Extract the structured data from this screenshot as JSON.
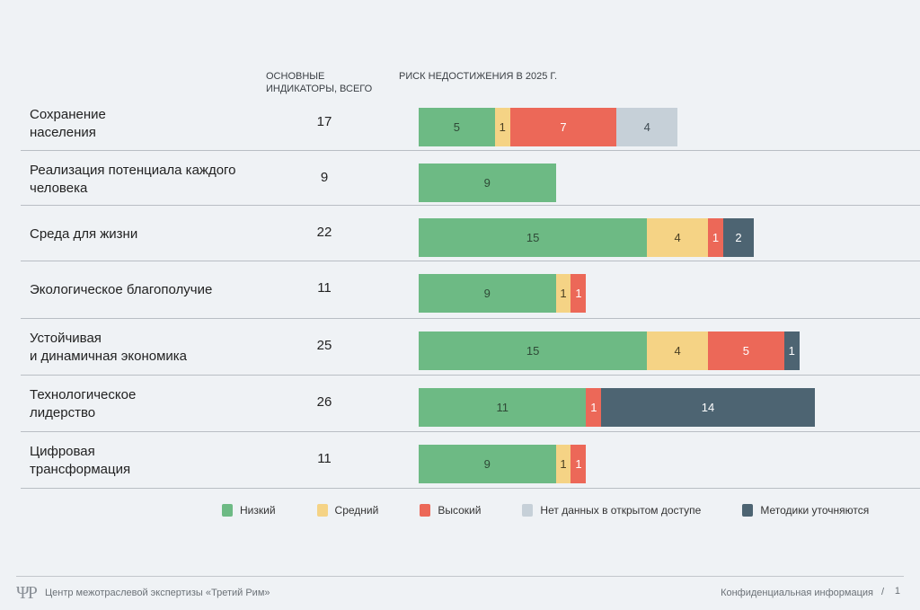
{
  "headers": {
    "total": "ОСНОВНЫЕ ИНДИКАТОРЫ, ВСЕГО",
    "risk": "РИСК НЕДОСТИЖЕНИЯ В 2025 Г."
  },
  "colors": {
    "low": "#6dba84",
    "medium": "#f5d385",
    "high": "#ec6858",
    "nodata": "#c6d0d8",
    "methods": "#4d6472"
  },
  "chart_data": {
    "type": "bar",
    "orientation": "horizontal-stacked",
    "title": "Риск недостижения в 2025 г.",
    "categories": [
      "Сохранение населения",
      "Реализация потенциала каждого человека",
      "Среда для жизни",
      "Экологическое благополучие",
      "Устойчивая и динамичная экономика",
      "Технологическое лидерство",
      "Цифровая трансформация"
    ],
    "totals": [
      17,
      9,
      22,
      11,
      25,
      26,
      11
    ],
    "series": [
      {
        "name": "Низкий",
        "key": "low",
        "values": [
          5,
          9,
          15,
          9,
          15,
          11,
          9
        ]
      },
      {
        "name": "Средний",
        "key": "medium",
        "values": [
          1,
          0,
          4,
          1,
          4,
          0,
          1
        ]
      },
      {
        "name": "Высокий",
        "key": "high",
        "values": [
          7,
          0,
          1,
          1,
          5,
          1,
          1
        ]
      },
      {
        "name": "Нет данных в открытом доступе",
        "key": "nodata",
        "values": [
          4,
          0,
          0,
          0,
          0,
          0,
          0
        ]
      },
      {
        "name": "Методики уточняются",
        "key": "methods",
        "values": [
          0,
          0,
          2,
          0,
          1,
          14,
          0
        ]
      }
    ],
    "legend_position": "bottom",
    "grid": false
  },
  "rows": [
    {
      "label_lines": [
        "Сохранение",
        "населения"
      ],
      "total": "17"
    },
    {
      "label_lines": [
        "Реализация потенциала каждого",
        "человека"
      ],
      "total": "9"
    },
    {
      "label_lines": [
        "Среда для жизни"
      ],
      "total": "22"
    },
    {
      "label_lines": [
        "Экологическое благополучие"
      ],
      "total": "11"
    },
    {
      "label_lines": [
        "Устойчивая",
        "и динамичная экономика"
      ],
      "total": "25"
    },
    {
      "label_lines": [
        "Технологическое",
        "лидерство"
      ],
      "total": "26"
    },
    {
      "label_lines": [
        "Цифровая",
        "трансформация"
      ],
      "total": "11"
    }
  ],
  "legend": [
    {
      "label": "Низкий",
      "key": "low"
    },
    {
      "label": "Средний",
      "key": "medium"
    },
    {
      "label": "Высокий",
      "key": "high"
    },
    {
      "label": "Нет данных в открытом доступе",
      "key": "nodata"
    },
    {
      "label": "Методики уточняются",
      "key": "methods"
    }
  ],
  "footer": {
    "logo": "ΨP",
    "org": "Центр межотраслевой экспертизы «Третий Рим»",
    "confidential": "Конфиденциальная информация",
    "separator": "/",
    "page": "1"
  }
}
